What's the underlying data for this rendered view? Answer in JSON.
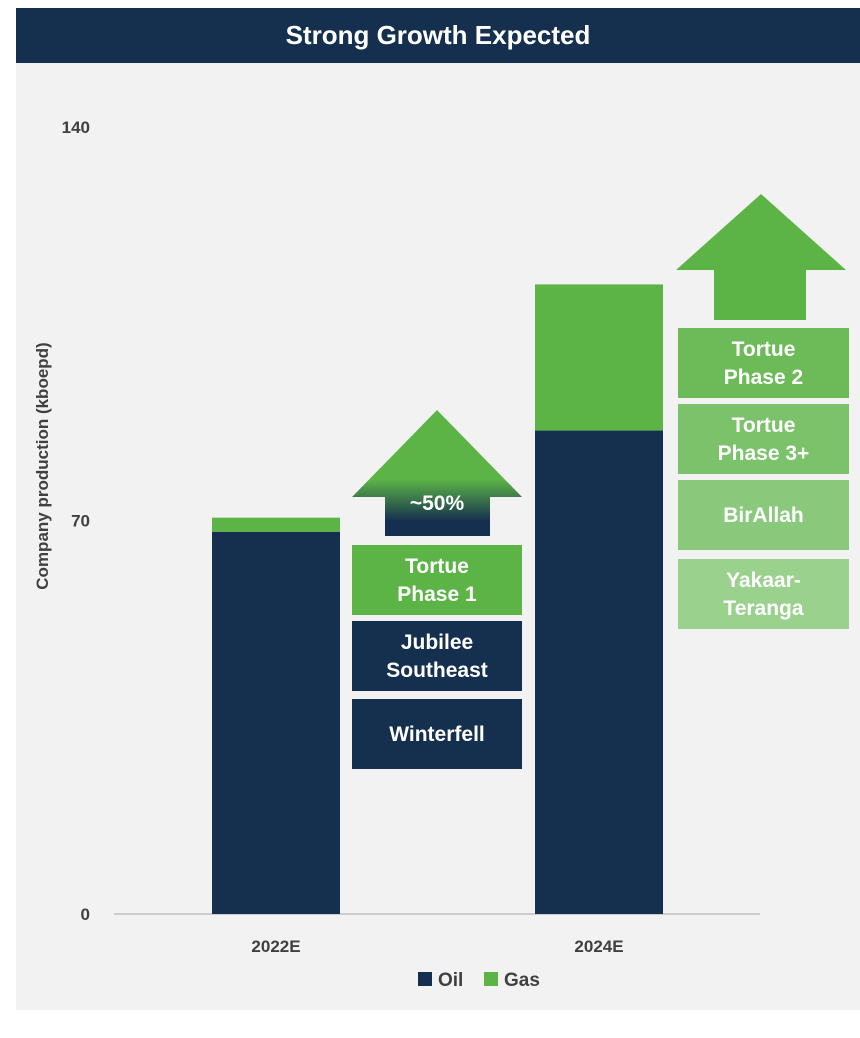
{
  "chart_data": {
    "type": "bar",
    "title": "Strong Growth Expected",
    "ylabel": "Company production (kboepd)",
    "ylim": [
      0,
      140
    ],
    "yticks": [
      0,
      70,
      140
    ],
    "categories": [
      "2022E",
      "2024E"
    ],
    "series": [
      {
        "name": "Oil",
        "values": [
          68,
          86
        ]
      },
      {
        "name": "Gas",
        "values": [
          2.5,
          26
        ]
      }
    ],
    "legend_position": "bottom",
    "grid": false,
    "annotations": {
      "growth_label": "~50%",
      "group_2022_to_2024": [
        [
          "Tortue",
          "Phase 1"
        ],
        [
          "Jubilee",
          "Southeast"
        ],
        [
          "Winterfell"
        ]
      ],
      "group_beyond_2024": [
        [
          "Tortue",
          "Phase 2"
        ],
        [
          "Tortue",
          "Phase 3+"
        ],
        [
          "BirAllah"
        ],
        [
          "Yakaar-",
          "Teranga"
        ]
      ]
    }
  },
  "colors": {
    "oil": "#15304f",
    "gas": "#5db446",
    "header": "#15304f",
    "panel": "#f2f2f2",
    "axis_text": "#404040",
    "box_gas": "#5db446",
    "box_oil": "#15304f",
    "box_light_1": "#6cbb58",
    "box_light_2": "#7cc26a",
    "box_light_3": "#8ac97b",
    "box_light_4": "#9ad18d"
  }
}
